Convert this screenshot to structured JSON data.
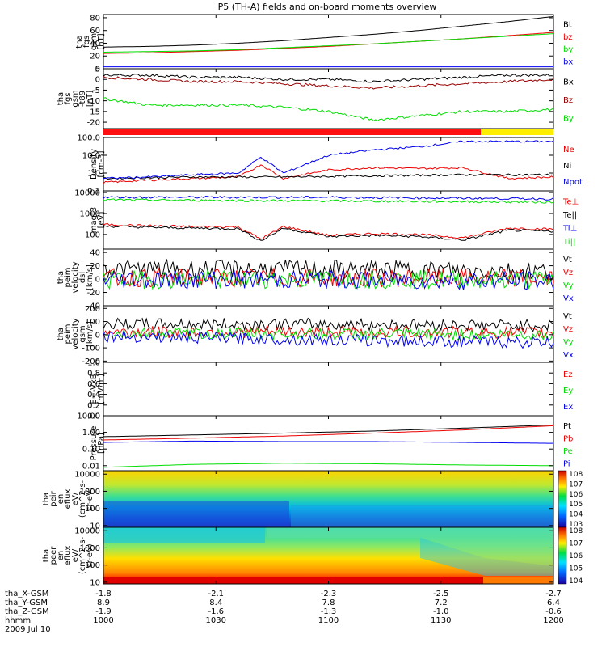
{
  "title": "P5 (TH-A) fields and on-board moments overview",
  "colors": {
    "black": "#000000",
    "red": "#ee0000",
    "green": "#00dd00",
    "blue": "#0000ee",
    "yellow": "#ffee00",
    "brightred": "#ff1010"
  },
  "chart_data": {
    "type": "line",
    "panels": [
      {
        "id": "fgs_mag",
        "ylabel": [
          "tha",
          "fgs",
          "gsm",
          "[nT]"
        ],
        "ylim": [
          0,
          85
        ],
        "yticks": [
          "0",
          "20",
          "40",
          "60",
          "80"
        ],
        "yticks_values": [
          0,
          20,
          40,
          60,
          80
        ],
        "series": [
          {
            "name": "Bt",
            "color": "#000000",
            "x": [
              0,
              0.1,
              0.2,
              0.3,
              0.4,
              0.5,
              0.6,
              0.7,
              0.8,
              0.9,
              1.0
            ],
            "y": [
              34,
              35,
              37,
              40,
              44,
              49,
              54,
              60,
              67,
              74,
              82
            ]
          },
          {
            "name": "bz",
            "color": "#ee0000",
            "x": [
              0,
              0.1,
              0.2,
              0.3,
              0.4,
              0.5,
              0.6,
              0.7,
              0.8,
              0.9,
              1.0
            ],
            "y": [
              24,
              25,
              27,
              29,
              32,
              35,
              39,
              43,
              47,
              52,
              57
            ]
          },
          {
            "name": "by",
            "color": "#00dd00",
            "x": [
              0,
              0.1,
              0.2,
              0.3,
              0.4,
              0.5,
              0.6,
              0.7,
              0.8,
              0.9,
              1.0
            ],
            "y": [
              26,
              27,
              28,
              30,
              33,
              36,
              39,
              43,
              47,
              51,
              55
            ]
          },
          {
            "name": "bx",
            "color": "#0000ee",
            "x": [
              0,
              0.1,
              0.2,
              0.3,
              0.4,
              0.5,
              0.6,
              0.7,
              0.8,
              0.9,
              1.0
            ],
            "y": [
              3,
              3,
              3,
              3,
              3,
              3,
              3,
              3,
              3,
              3,
              3
            ]
          }
        ]
      },
      {
        "id": "fgs_dev",
        "ylabel": [
          "tha",
          "fgs",
          "gsm",
          "-t89",
          "[nT]"
        ],
        "ylim": [
          -23,
          5
        ],
        "yticks": [
          "-20",
          "-15",
          "-10",
          "-5",
          "0",
          "5"
        ],
        "yticks_values": [
          -20,
          -15,
          -10,
          -5,
          0,
          5
        ],
        "series": [
          {
            "name": "Bx",
            "color": "#000000",
            "x": [
              0,
              0.1,
              0.2,
              0.3,
              0.4,
              0.5,
              0.6,
              0.7,
              0.8,
              0.9,
              1.0
            ],
            "y": [
              2,
              2,
              1,
              1,
              0,
              0,
              -1,
              0,
              1,
              2,
              2
            ]
          },
          {
            "name": "Bz",
            "color": "#990000",
            "x": [
              0,
              0.1,
              0.2,
              0.3,
              0.4,
              0.5,
              0.6,
              0.7,
              0.8,
              0.9,
              1.0
            ],
            "y": [
              1,
              0,
              -1,
              -1,
              -2,
              -3,
              -4,
              -3,
              -2,
              -1,
              0
            ]
          },
          {
            "name": "By",
            "color": "#00dd00",
            "x": [
              0,
              0.1,
              0.2,
              0.3,
              0.4,
              0.5,
              0.6,
              0.7,
              0.8,
              0.9,
              1.0
            ],
            "y": [
              -9,
              -12,
              -12,
              -12,
              -13,
              -15,
              -19,
              -17,
              -15,
              -15,
              -14
            ]
          }
        ]
      },
      {
        "id": "mode_bar",
        "segments": [
          {
            "from": 0,
            "to": 0.82,
            "color": "#ff1010"
          },
          {
            "from": 0.82,
            "to": 1.0,
            "color": "#ffee00"
          }
        ]
      },
      {
        "id": "density",
        "ylabel": [
          "Density",
          "[cm-3]"
        ],
        "ylim": [
          0.1,
          100
        ],
        "log": true,
        "yticks": [
          "0.1",
          "1.0",
          "10.0",
          "100.0"
        ],
        "yticks_values": [
          0.1,
          1.0,
          10.0,
          100.0
        ],
        "series": [
          {
            "name": "Ne",
            "color": "#ee0000",
            "x": [
              0,
              0.1,
              0.2,
              0.3,
              0.35,
              0.4,
              0.5,
              0.6,
              0.7,
              0.8,
              0.9,
              1.0
            ],
            "y": [
              0.3,
              0.4,
              0.5,
              0.6,
              3,
              0.5,
              1.5,
              2,
              1.8,
              2,
              0.5,
              0.6
            ]
          },
          {
            "name": "Ni",
            "color": "#000000",
            "x": [
              0,
              0.2,
              0.4,
              0.6,
              0.8,
              1.0
            ],
            "y": [
              0.5,
              0.6,
              0.6,
              0.7,
              0.8,
              0.8
            ]
          },
          {
            "name": "Npot",
            "color": "#0000ee",
            "x": [
              0,
              0.1,
              0.2,
              0.3,
              0.35,
              0.4,
              0.5,
              0.6,
              0.7,
              0.8,
              0.9,
              1.0
            ],
            "y": [
              0.5,
              0.6,
              0.8,
              1,
              8,
              1,
              10,
              20,
              30,
              60,
              60,
              60
            ]
          }
        ]
      },
      {
        "id": "temperature",
        "ylabel": [
          "magt3",
          "[eV]"
        ],
        "ylim": [
          20,
          12000
        ],
        "log": true,
        "yticks": [
          "100",
          "1000",
          "10000"
        ],
        "yticks_values": [
          100,
          1000,
          10000
        ],
        "series": [
          {
            "name": "Te⊥",
            "color": "#ee0000",
            "x": [
              0,
              0.1,
              0.2,
              0.3,
              0.35,
              0.4,
              0.5,
              0.6,
              0.7,
              0.8,
              0.9,
              1.0
            ],
            "y": [
              300,
              260,
              240,
              230,
              60,
              240,
              90,
              110,
              100,
              70,
              200,
              180
            ]
          },
          {
            "name": "Te||",
            "color": "#000000",
            "x": [
              0,
              0.1,
              0.2,
              0.3,
              0.35,
              0.4,
              0.5,
              0.6,
              0.7,
              0.8,
              0.9,
              1.0
            ],
            "y": [
              250,
              220,
              200,
              190,
              50,
              200,
              80,
              90,
              80,
              55,
              160,
              140
            ]
          },
          {
            "name": "Ti⊥",
            "color": "#0000ee",
            "x": [
              0,
              0.5,
              1.0
            ],
            "y": [
              6000,
              6000,
              5000
            ]
          },
          {
            "name": "Ti||",
            "color": "#00dd00",
            "x": [
              0,
              0.5,
              1.0
            ],
            "y": [
              4500,
              4000,
              3500
            ]
          }
        ]
      },
      {
        "id": "peim_dsl",
        "ylabel": [
          "tha",
          "peim",
          "velocity",
          "dsl",
          "[km/s]"
        ],
        "ylim": [
          -40,
          45
        ],
        "yticks": [
          "-40",
          "-20",
          "0",
          "20",
          "40"
        ],
        "yticks_values": [
          -40,
          -20,
          0,
          20,
          40
        ],
        "series": [
          {
            "name": "Vt",
            "color": "#000000",
            "x": [
              0,
              0.5,
              1.0
            ],
            "y": [
              15,
              15,
              12
            ]
          },
          {
            "name": "Vz",
            "color": "#ee0000",
            "x": [
              0,
              0.5,
              1.0
            ],
            "y": [
              2,
              2,
              1
            ]
          },
          {
            "name": "Vy",
            "color": "#00dd00",
            "x": [
              0,
              0.5,
              1.0
            ],
            "y": [
              -1,
              0,
              -1
            ]
          },
          {
            "name": "Vx",
            "color": "#0000ee",
            "x": [
              0,
              0.5,
              1.0
            ],
            "y": [
              0,
              -1,
              -3
            ]
          }
        ]
      },
      {
        "id": "peim_gsm",
        "ylabel": [
          "tha",
          "peim",
          "velocity",
          "gsm",
          "[km/s]"
        ],
        "ylim": [
          -210,
          220
        ],
        "yticks": [
          "-200",
          "-100",
          "0",
          "100",
          "200"
        ],
        "yticks_values": [
          -200,
          -100,
          0,
          100,
          200
        ],
        "series": [
          {
            "name": "Vt",
            "color": "#000000",
            "x": [
              0,
              0.5,
              1.0
            ],
            "y": [
              80,
              80,
              70
            ]
          },
          {
            "name": "Vz",
            "color": "#ee0000",
            "x": [
              0,
              0.5,
              1.0
            ],
            "y": [
              20,
              20,
              15
            ]
          },
          {
            "name": "Vy",
            "color": "#00dd00",
            "x": [
              0,
              0.5,
              1.0
            ],
            "y": [
              10,
              5,
              0
            ]
          },
          {
            "name": "Vx",
            "color": "#0000ee",
            "x": [
              0,
              0.5,
              1.0
            ],
            "y": [
              -10,
              -40,
              -60
            ]
          }
        ]
      },
      {
        "id": "efield",
        "ylabel": [
          "E=-VxB",
          "[mV/m]"
        ],
        "ylim": [
          0,
          1
        ],
        "yticks": [
          "0.0",
          "0.2",
          "0.4",
          "0.6",
          "0.8",
          "1.0"
        ],
        "yticks_values": [
          0,
          0.2,
          0.4,
          0.6,
          0.8,
          1.0
        ],
        "series": [
          {
            "name": "Ez",
            "color": "#ee0000",
            "x": [],
            "y": []
          },
          {
            "name": "Ey",
            "color": "#00dd00",
            "x": [],
            "y": []
          },
          {
            "name": "Ex",
            "color": "#0000ee",
            "x": [],
            "y": []
          }
        ]
      },
      {
        "id": "pressure",
        "ylabel": [
          "Pressure",
          "[nPa]"
        ],
        "ylim": [
          0.005,
          10
        ],
        "log": true,
        "yticks": [
          "0.01",
          "0.10",
          "1.00",
          "10.00"
        ],
        "yticks_values": [
          0.01,
          0.1,
          1.0,
          10.0
        ],
        "series": [
          {
            "name": "Pt",
            "color": "#000000",
            "x": [
              0,
              0.2,
              0.4,
              0.6,
              0.8,
              1.0
            ],
            "y": [
              0.55,
              0.7,
              0.9,
              1.2,
              1.8,
              2.8
            ]
          },
          {
            "name": "Pb",
            "color": "#ee0000",
            "x": [
              0,
              0.2,
              0.4,
              0.6,
              0.8,
              1.0
            ],
            "y": [
              0.35,
              0.45,
              0.6,
              0.9,
              1.4,
              2.5
            ]
          },
          {
            "name": "Pe",
            "color": "#00dd00",
            "x": [
              0,
              0.2,
              0.4,
              0.6,
              0.8,
              1.0
            ],
            "y": [
              0.008,
              0.012,
              0.014,
              0.013,
              0.011,
              0.01
            ]
          },
          {
            "name": "Pi",
            "color": "#0000ee",
            "x": [
              0,
              0.2,
              0.4,
              0.6,
              0.8,
              1.0
            ],
            "y": [
              0.25,
              0.3,
              0.28,
              0.28,
              0.25,
              0.22
            ]
          }
        ]
      },
      {
        "id": "peir_spec",
        "type": "heatmap",
        "ylabel": [
          "tha",
          "peir",
          "en",
          "eflux",
          "eV/",
          "(cm^2-s-",
          "sr-eV)"
        ],
        "yticks": [
          "10",
          "100",
          "1000",
          "10000"
        ],
        "yticks_values": [
          10,
          100,
          1000,
          10000
        ],
        "colorbar_ticks": [
          "10^3",
          "10^4",
          "10^5",
          "10^6",
          "10^7",
          "10^8"
        ]
      },
      {
        "id": "peer_spec",
        "type": "heatmap",
        "ylabel": [
          "tha",
          "peer",
          "en",
          "eflux",
          "eV/",
          "(cm^2-s-",
          "sr-eV)"
        ],
        "yticks": [
          "10",
          "100",
          "1000",
          "10000"
        ],
        "yticks_values": [
          10,
          100,
          1000,
          10000
        ],
        "colorbar_ticks": [
          "10^4",
          "10^5",
          "10^6",
          "10^7",
          "10^8"
        ]
      }
    ],
    "x_axis": {
      "rows": [
        {
          "label": "tha_X-GSM",
          "values": [
            "-1.8",
            "-2.1",
            "-2.3",
            "-2.5",
            "-2.7"
          ]
        },
        {
          "label": "tha_Y-GSM",
          "values": [
            "8.9",
            "8.4",
            "7.8",
            "7.2",
            "6.4"
          ]
        },
        {
          "label": "tha_Z-GSM",
          "values": [
            "-1.9",
            "-1.6",
            "-1.3",
            "-1.0",
            "-0.6"
          ]
        },
        {
          "label": "hhmm",
          "values": [
            "1000",
            "1030",
            "1100",
            "1130",
            "1200"
          ]
        }
      ],
      "date": "2009 Jul 10"
    }
  }
}
